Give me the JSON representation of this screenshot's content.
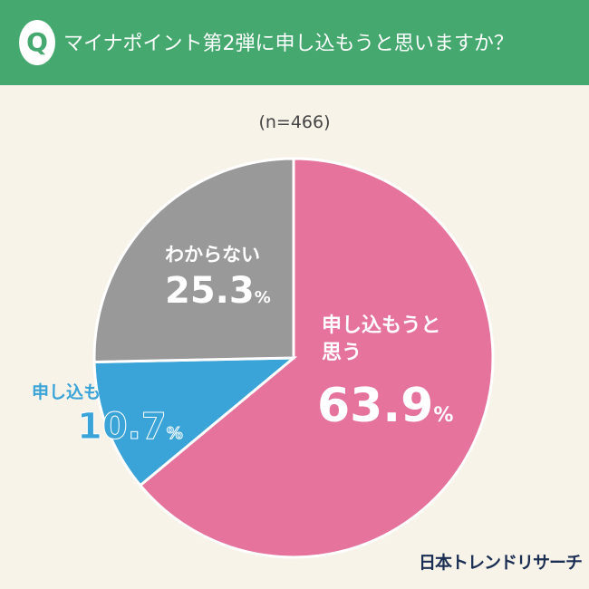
{
  "header": {
    "badge": "Q",
    "title": "マイナポイント第2弾に申し込もうと思いますか？",
    "color": "#45A86F"
  },
  "chart_data": {
    "type": "pie",
    "title": "マイナポイント第2弾に申し込もうと思いますか？",
    "sample": "(n=466)",
    "slices": [
      {
        "label": "申し込もうと思う",
        "label_lines": [
          "申し込もうと",
          "思う"
        ],
        "value": 63.9,
        "display": "63.9",
        "color": "#E5739B"
      },
      {
        "label": "申し込もうと思わない",
        "value": 10.7,
        "display": "10.7",
        "color": "#3AA3D8"
      },
      {
        "label": "わからない",
        "value": 25.3,
        "display": "25.3",
        "color": "#999999"
      }
    ],
    "unit": "%",
    "start": "12 o'clock, clockwise"
  },
  "logo": "日本トレンドリサーチ"
}
